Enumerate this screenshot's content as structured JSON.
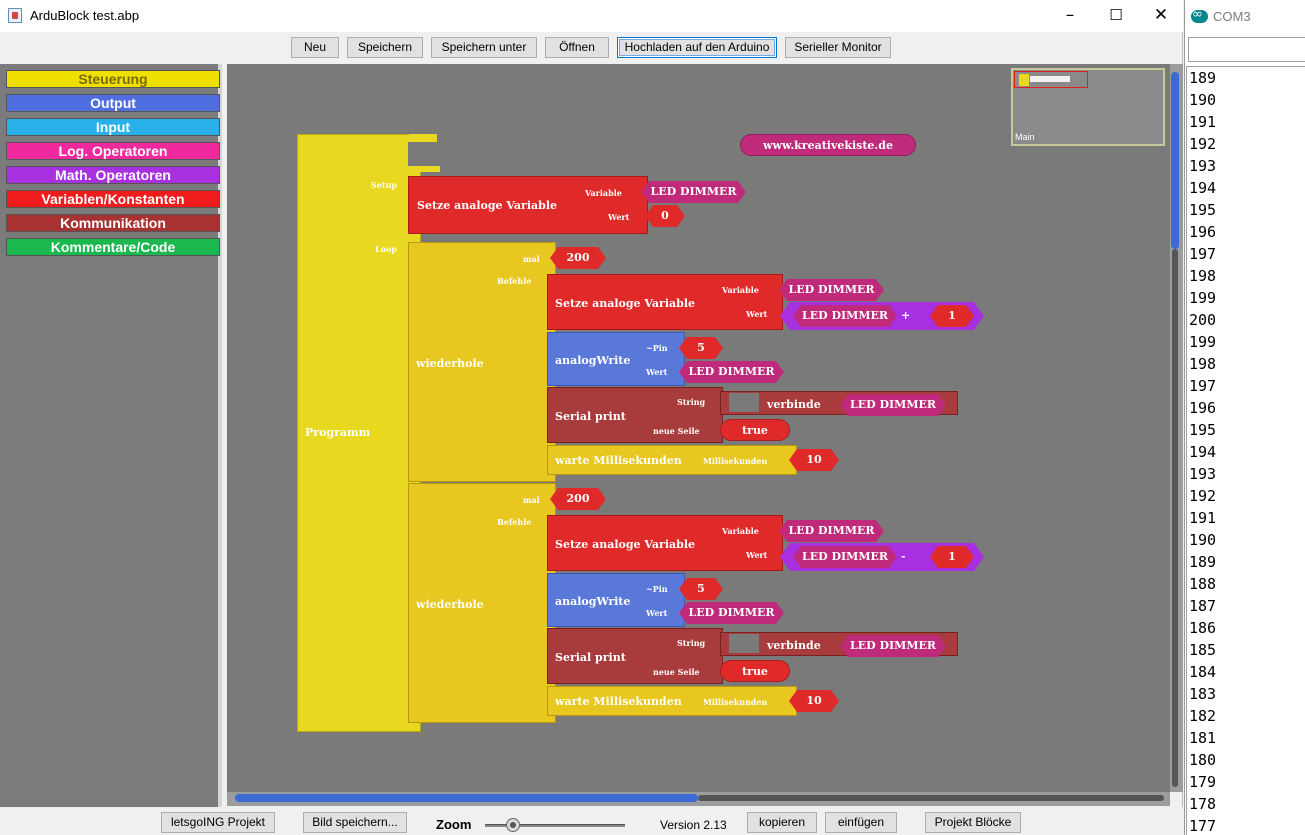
{
  "window": {
    "title": "ArduBlock test.abp",
    "minimize": "–",
    "maximize": "☐",
    "close": "✕"
  },
  "toolbar": {
    "new": "Neu",
    "save": "Speichern",
    "save_as": "Speichern unter",
    "open": "Öffnen",
    "upload": "Hochladen auf den Arduino",
    "serial_monitor": "Serieller Monitor"
  },
  "palette": [
    {
      "label": "Steuerung",
      "color": "#f0e000",
      "text_color": "#7a6a00"
    },
    {
      "label": "Output",
      "color": "#4f6fe0",
      "text_color": "#ffffff"
    },
    {
      "label": "Input",
      "color": "#2ab0e8",
      "text_color": "#ffffff"
    },
    {
      "label": "Log. Operatoren",
      "color": "#f02a9e",
      "text_color": "#ffffff"
    },
    {
      "label": "Math. Operatoren",
      "color": "#a830e0",
      "text_color": "#ffffff"
    },
    {
      "label": "Variablen/Konstanten",
      "color": "#f01c1c",
      "text_color": "#ffffff"
    },
    {
      "label": "Kommunikation",
      "color": "#a83232",
      "text_color": "#ffffff"
    },
    {
      "label": "Kommentare/Code",
      "color": "#1ab84e",
      "text_color": "#ffffff"
    }
  ],
  "canvas": {
    "url_label": "www.kreativekiste.de",
    "program": {
      "label": "Programm",
      "setup_label": "Setup",
      "loop_label": "Loop"
    },
    "setup_block": {
      "label": "Setze analoge Variable",
      "var_label": "Variable",
      "val_label": "Wert",
      "var": "LED DIMMER",
      "val": "0"
    },
    "loops": [
      {
        "label": "wiederhole",
        "times_label": "mal",
        "times": "200",
        "cmd_label": "Befehle",
        "set": {
          "label": "Setze analoge Variable",
          "var_label": "Variable",
          "val_label": "Wert",
          "var": "LED DIMMER",
          "expr_var": "LED DIMMER",
          "op": "+",
          "num": "1"
        },
        "analog": {
          "label": "analogWrite",
          "pin_label": "~Pin",
          "val_label": "Wert",
          "pin": "5",
          "val": "LED DIMMER"
        },
        "serial": {
          "label": "Serial print",
          "str_label": "String",
          "nl_label": "neue Seile",
          "join": "verbinde",
          "var": "LED DIMMER",
          "nl": "true"
        },
        "wait": {
          "label": "warte Millisekunden",
          "ms_label": "Millisekunden",
          "ms": "10"
        }
      },
      {
        "label": "wiederhole",
        "times_label": "mal",
        "times": "200",
        "cmd_label": "Befehle",
        "set": {
          "label": "Setze analoge Variable",
          "var_label": "Variable",
          "val_label": "Wert",
          "var": "LED DIMMER",
          "expr_var": "LED DIMMER",
          "op": "-",
          "num": "1"
        },
        "analog": {
          "label": "analogWrite",
          "pin_label": "~Pin",
          "val_label": "Wert",
          "pin": "5",
          "val": "LED DIMMER"
        },
        "serial": {
          "label": "Serial print",
          "str_label": "String",
          "nl_label": "neue Seile",
          "join": "verbinde",
          "var": "LED DIMMER",
          "nl": "true"
        },
        "wait": {
          "label": "warte Millisekunden",
          "ms_label": "Millisekunden",
          "ms": "10"
        }
      }
    ]
  },
  "minimap": {
    "label": "Main"
  },
  "bottombar": {
    "project": "letsgoING Projekt",
    "save_image": "Bild speichern...",
    "zoom": "Zoom",
    "version": "Version 2.13",
    "copy": "kopieren",
    "paste": "einfügen",
    "project_blocks": "Projekt Blöcke"
  },
  "serial_monitor": {
    "title": "COM3",
    "lines": [
      "189",
      "190",
      "191",
      "192",
      "193",
      "194",
      "195",
      "196",
      "197",
      "198",
      "199",
      "200",
      "199",
      "198",
      "197",
      "196",
      "195",
      "194",
      "193",
      "192",
      "191",
      "190",
      "189",
      "188",
      "187",
      "186",
      "185",
      "184",
      "183",
      "182",
      "181",
      "180",
      "179",
      "178",
      "177"
    ]
  }
}
